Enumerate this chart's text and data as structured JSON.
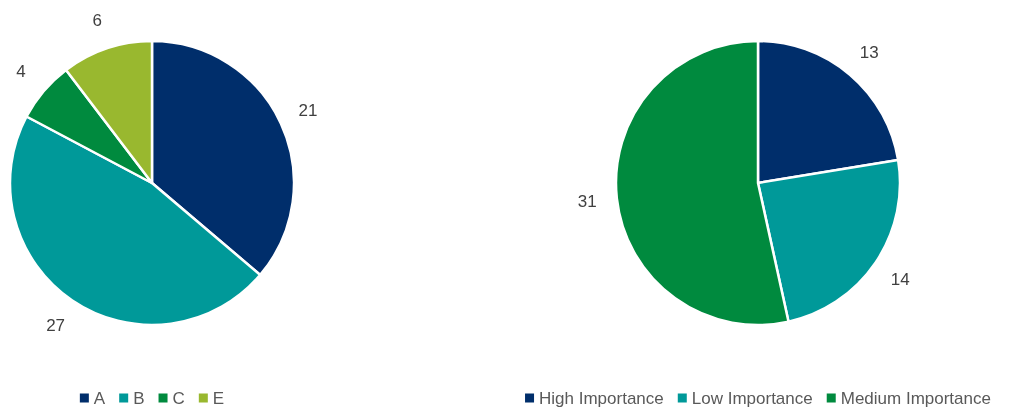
{
  "chart_data": [
    {
      "type": "pie",
      "categories": [
        "A",
        "B",
        "C",
        "E"
      ],
      "values": [
        21,
        27,
        4,
        6
      ],
      "colors": [
        "#002e6b",
        "#009999",
        "#008a3e",
        "#99b82f"
      ],
      "data_labels": true,
      "legend": "bottom"
    },
    {
      "type": "pie",
      "categories": [
        "High Importance",
        "Low Importance",
        "Medium Importance"
      ],
      "values": [
        13,
        14,
        31
      ],
      "colors": [
        "#002e6b",
        "#009999",
        "#008a3e"
      ],
      "data_labels": true,
      "legend": "bottom"
    }
  ]
}
